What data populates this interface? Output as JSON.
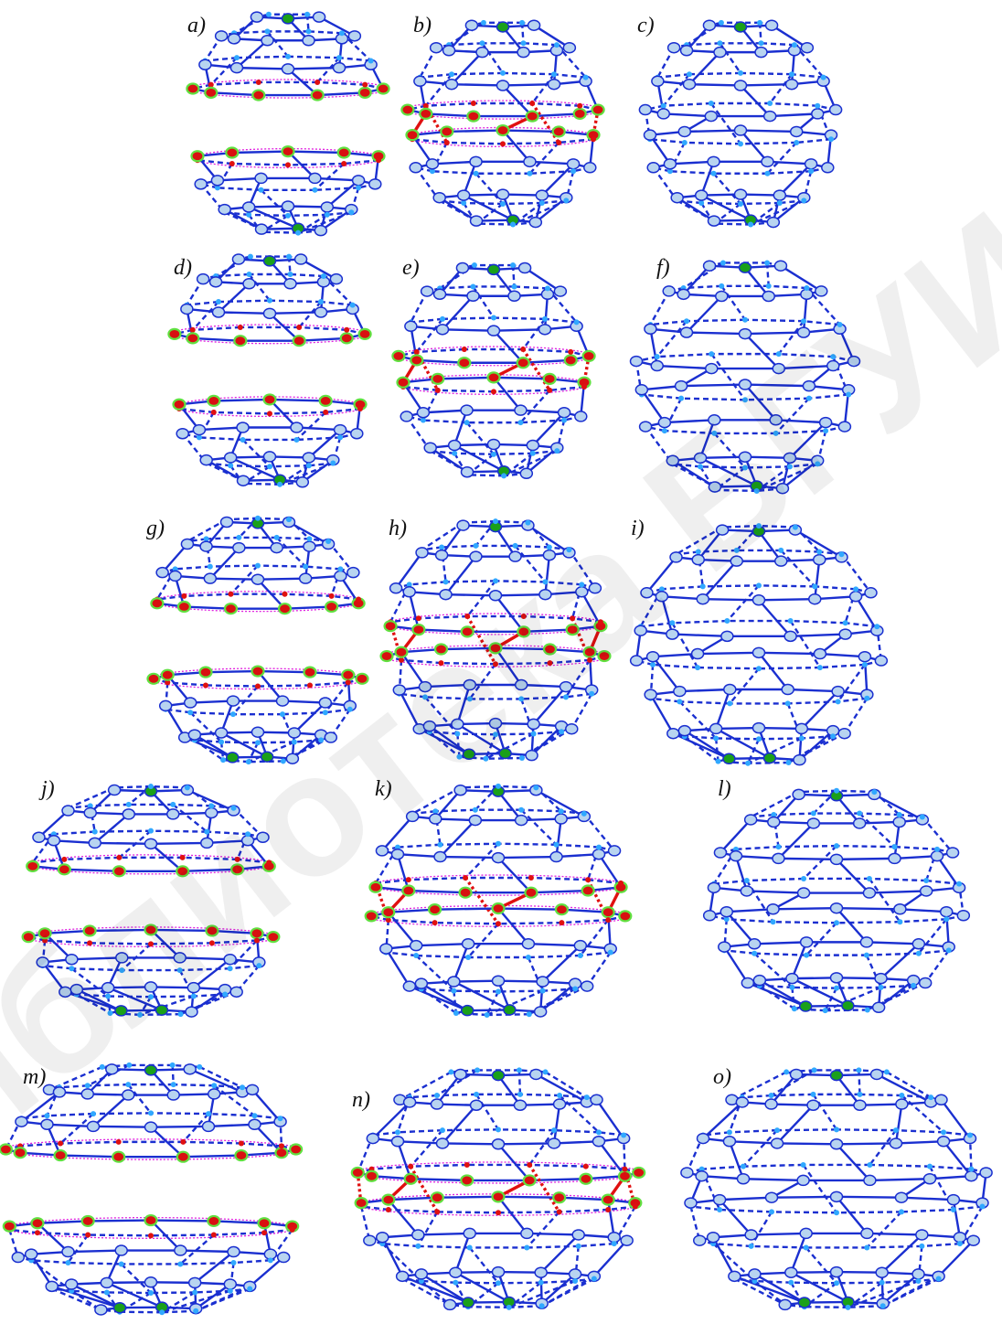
{
  "panels": [
    {
      "label": "a)"
    },
    {
      "label": "b)"
    },
    {
      "label": "c)"
    },
    {
      "label": "d)"
    },
    {
      "label": "e)"
    },
    {
      "label": "f)"
    },
    {
      "label": "g)"
    },
    {
      "label": "h)"
    },
    {
      "label": "i)"
    },
    {
      "label": "j)"
    },
    {
      "label": "k)"
    },
    {
      "label": "l)"
    },
    {
      "label": "m)"
    },
    {
      "label": "n)"
    },
    {
      "label": "o)"
    }
  ],
  "watermark": "Библиотека БГУИР"
}
